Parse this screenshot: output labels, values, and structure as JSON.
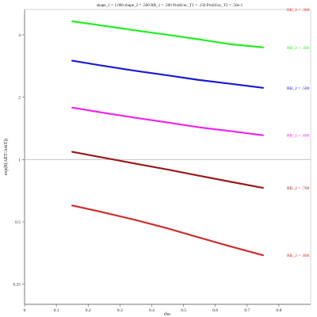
{
  "chart_data": {
    "type": "line",
    "title": "shape_1 = 1.000  shape_2 = .500  RR_1 = .500  ProbUnc_T1 = .150  ProbUnc_T2 = .50e-1",
    "xlabel": "rho",
    "ylabel": "exp(E(AET/AmT))",
    "y_scale": "log",
    "xlim": [
      0,
      0.9
    ],
    "ylim": [
      0.2,
      5.3
    ],
    "x_ticks": [
      0,
      0.1,
      0.2,
      0.3,
      0.4,
      0.5,
      0.6,
      0.7,
      0.8
    ],
    "x_tick_labels": [
      "0",
      "0.1",
      "0.2",
      "0.3",
      "0.4",
      "0.5",
      "0.6",
      "0.7",
      "0.8"
    ],
    "y_ticks": [
      0.25,
      0.5,
      1,
      2,
      4
    ],
    "y_tick_labels": [
      "0.25",
      "0.5",
      "1",
      "2",
      "4"
    ],
    "reference_line_y": 1,
    "series": [
      {
        "name": "RR_2 = .300",
        "color": "#e33030",
        "x": [],
        "y": []
      },
      {
        "name": "RR_2 = .400",
        "color": "#22ee22",
        "x": [
          0.15,
          0.25,
          0.35,
          0.45,
          0.55,
          0.65,
          0.75
        ],
        "y": [
          4.65,
          4.42,
          4.2,
          4.0,
          3.8,
          3.6,
          3.48
        ]
      },
      {
        "name": "RR_2 = .500",
        "color": "#1a1ad0",
        "x": [
          0.15,
          0.25,
          0.35,
          0.45,
          0.55,
          0.65,
          0.75
        ],
        "y": [
          3.0,
          2.83,
          2.68,
          2.55,
          2.42,
          2.32,
          2.22
        ]
      },
      {
        "name": "RR_2 = .600",
        "color": "#ee22ee",
        "x": [
          0.15,
          0.25,
          0.35,
          0.45,
          0.55,
          0.65,
          0.75
        ],
        "y": [
          1.78,
          1.68,
          1.59,
          1.51,
          1.43,
          1.37,
          1.31
        ]
      },
      {
        "name": "RR_2 = .700",
        "color": "#9a1a1a",
        "x": [
          0.15,
          0.25,
          0.35,
          0.45,
          0.55,
          0.65,
          0.75
        ],
        "y": [
          1.09,
          1.02,
          0.955,
          0.895,
          0.835,
          0.78,
          0.73
        ]
      },
      {
        "name": "RR_2 = .800",
        "color": "#cc2e2e",
        "x": [
          0.15,
          0.25,
          0.35,
          0.45,
          0.55,
          0.65,
          0.75
        ],
        "y": [
          0.6,
          0.555,
          0.51,
          0.465,
          0.42,
          0.38,
          0.345
        ]
      }
    ]
  }
}
